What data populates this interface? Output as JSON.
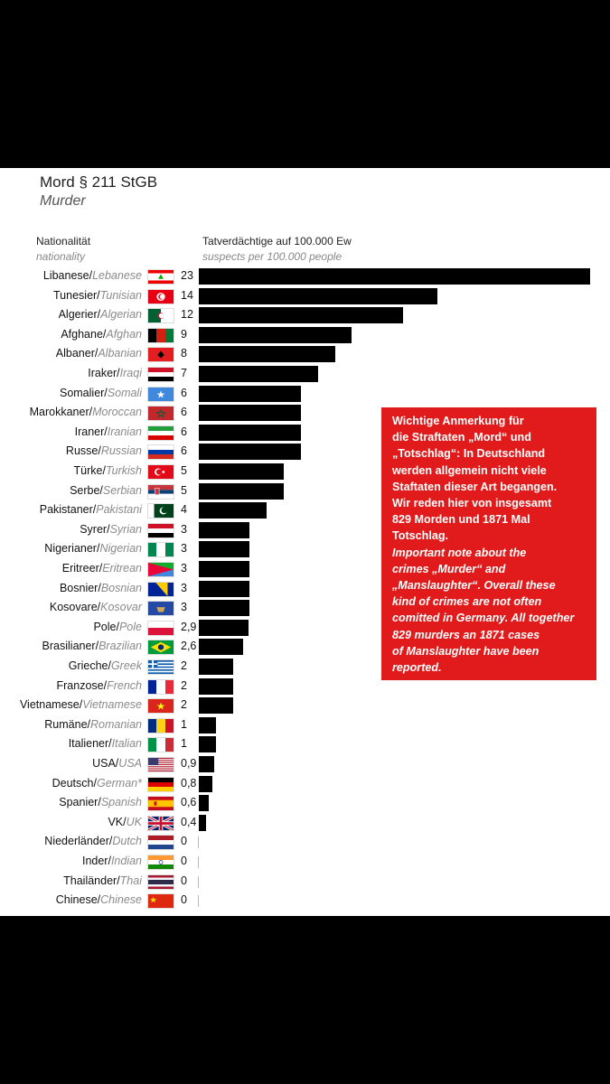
{
  "title": "Mord § 211 StGB",
  "subtitle": "Murder",
  "headers": {
    "nationality_de": "Nationalität",
    "nationality_en": "nationality",
    "metric_de": "Tatverdächtige auf 100.000 Ew",
    "metric_en": "suspects per 100.000 people"
  },
  "chart_data": {
    "type": "bar",
    "orientation": "horizontal",
    "title": "Mord § 211 StGB",
    "subtitle": "Murder",
    "xlabel": "Tatverdächtige auf 100.000 Ew",
    "xlabel_en": "suspects per 100.000 people",
    "ylabel": "Nationalität",
    "ylabel_en": "nationality",
    "xlim": [
      0,
      23
    ],
    "grid": false,
    "legend": "none",
    "bar_color": "#000000",
    "rows": [
      {
        "de": "Libanese",
        "en": "Lebanese",
        "value": 23,
        "label": "23",
        "flag": "lebanon"
      },
      {
        "de": "Tunesier",
        "en": "Tunisian",
        "value": 14,
        "label": "14",
        "flag": "tunisia"
      },
      {
        "de": "Algerier",
        "en": "Algerian",
        "value": 12,
        "label": "12",
        "flag": "algeria"
      },
      {
        "de": "Afghane",
        "en": "Afghan",
        "value": 9,
        "label": "9",
        "flag": "afghanistan"
      },
      {
        "de": "Albaner",
        "en": "Albanian",
        "value": 8,
        "label": "8",
        "flag": "albania"
      },
      {
        "de": "Iraker",
        "en": "Iraqi",
        "value": 7,
        "label": "7",
        "flag": "iraq"
      },
      {
        "de": "Somalier",
        "en": "Somali",
        "value": 6,
        "label": "6",
        "flag": "somalia"
      },
      {
        "de": "Marokkaner",
        "en": "Moroccan",
        "value": 6,
        "label": "6",
        "flag": "morocco"
      },
      {
        "de": "Iraner",
        "en": "Iranian",
        "value": 6,
        "label": "6",
        "flag": "iran"
      },
      {
        "de": "Russe",
        "en": "Russian",
        "value": 6,
        "label": "6",
        "flag": "russia"
      },
      {
        "de": "Türke",
        "en": "Turkish",
        "value": 5,
        "label": "5",
        "flag": "turkey"
      },
      {
        "de": "Serbe",
        "en": "Serbian",
        "value": 5,
        "label": "5",
        "flag": "serbia"
      },
      {
        "de": "Pakistaner",
        "en": "Pakistani",
        "value": 4,
        "label": "4",
        "flag": "pakistan"
      },
      {
        "de": "Syrer",
        "en": "Syrian",
        "value": 3,
        "label": "3",
        "flag": "syria"
      },
      {
        "de": "Nigerianer",
        "en": "Nigerian",
        "value": 3,
        "label": "3",
        "flag": "nigeria"
      },
      {
        "de": "Eritreer",
        "en": "Eritrean",
        "value": 3,
        "label": "3",
        "flag": "eritrea"
      },
      {
        "de": "Bosnier",
        "en": "Bosnian",
        "value": 3,
        "label": "3",
        "flag": "bosnia"
      },
      {
        "de": "Kosovare",
        "en": "Kosovar",
        "value": 3,
        "label": "3",
        "flag": "kosovo"
      },
      {
        "de": "Pole",
        "en": "Pole",
        "value": 2.9,
        "label": "2,9",
        "flag": "poland"
      },
      {
        "de": "Brasilianer",
        "en": "Brazilian",
        "value": 2.6,
        "label": "2,6",
        "flag": "brazil"
      },
      {
        "de": "Grieche",
        "en": "Greek",
        "value": 2,
        "label": "2",
        "flag": "greece"
      },
      {
        "de": "Franzose",
        "en": "French",
        "value": 2,
        "label": "2",
        "flag": "france"
      },
      {
        "de": "Vietnamese",
        "en": "Vietnamese",
        "value": 2,
        "label": "2",
        "flag": "vietnam"
      },
      {
        "de": "Rumäne",
        "en": "Romanian",
        "value": 1,
        "label": "1",
        "flag": "romania"
      },
      {
        "de": "Italiener",
        "en": "Italian",
        "value": 1,
        "label": "1",
        "flag": "italy"
      },
      {
        "de": "USA",
        "en": "USA",
        "value": 0.9,
        "label": "0,9",
        "flag": "usa"
      },
      {
        "de": "Deutsch",
        "en": "German*",
        "value": 0.8,
        "label": "0,8",
        "flag": "germany"
      },
      {
        "de": "Spanier",
        "en": "Spanish",
        "value": 0.6,
        "label": "0,6",
        "flag": "spain"
      },
      {
        "de": "VK",
        "en": "UK",
        "value": 0.4,
        "label": "0,4",
        "flag": "uk"
      },
      {
        "de": "Niederländer",
        "en": "Dutch",
        "value": 0,
        "label": "0",
        "flag": "netherlands"
      },
      {
        "de": "Inder",
        "en": "Indian",
        "value": 0,
        "label": "0",
        "flag": "india"
      },
      {
        "de": "Thailänder",
        "en": "Thai",
        "value": 0,
        "label": "0",
        "flag": "thailand"
      },
      {
        "de": "Chinese",
        "en": "Chinese",
        "value": 0,
        "label": "0",
        "flag": "china"
      }
    ]
  },
  "note": {
    "color": "#e11b1b",
    "lines_de": [
      "Wichtige Anmerkung für",
      "die Straftaten „Mord“ und",
      "„Totschlag“: In Deutschland",
      "werden allgemein nicht viele",
      "Staftaten dieser Art begangen.",
      "Wir reden hier von insgesamt",
      "829 Morden und 1871 Mal",
      "Totschlag."
    ],
    "lines_en": [
      "Important note about the",
      "crimes „Murder“ and",
      "„Manslaughter“. Overall these",
      "kind of crimes are not often",
      "comitted in Germany. All together",
      "829 murders an 1871 cases",
      "of Manslaughter have been",
      "reported."
    ]
  }
}
